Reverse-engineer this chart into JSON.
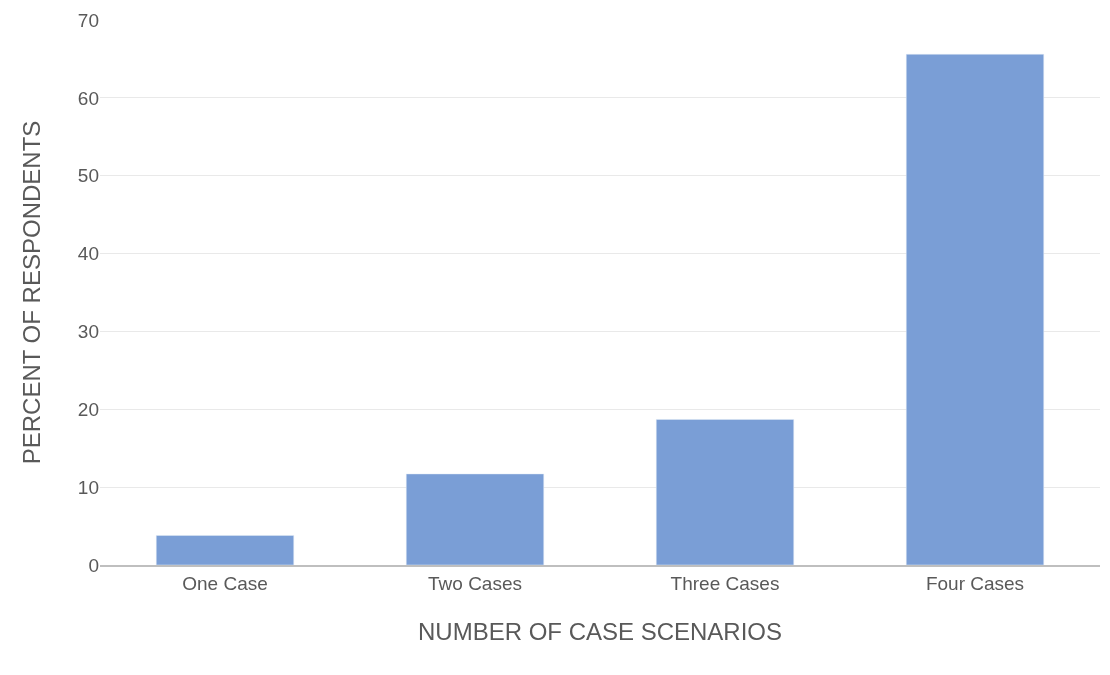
{
  "chart_data": {
    "type": "bar",
    "xlabel": "NUMBER OF CASE SCENARIOS",
    "ylabel": "PERCENT OF RESPONDENTS",
    "categories": [
      "One Case",
      "Two Cases",
      "Three Cases",
      "Four Cases"
    ],
    "values": [
      3.8,
      11.7,
      18.7,
      65.6
    ],
    "color": "#7a9ed6",
    "ylim": [
      0,
      70
    ],
    "yticks": [
      0,
      10,
      20,
      30,
      40,
      50,
      60,
      70
    ],
    "grid": "y"
  }
}
